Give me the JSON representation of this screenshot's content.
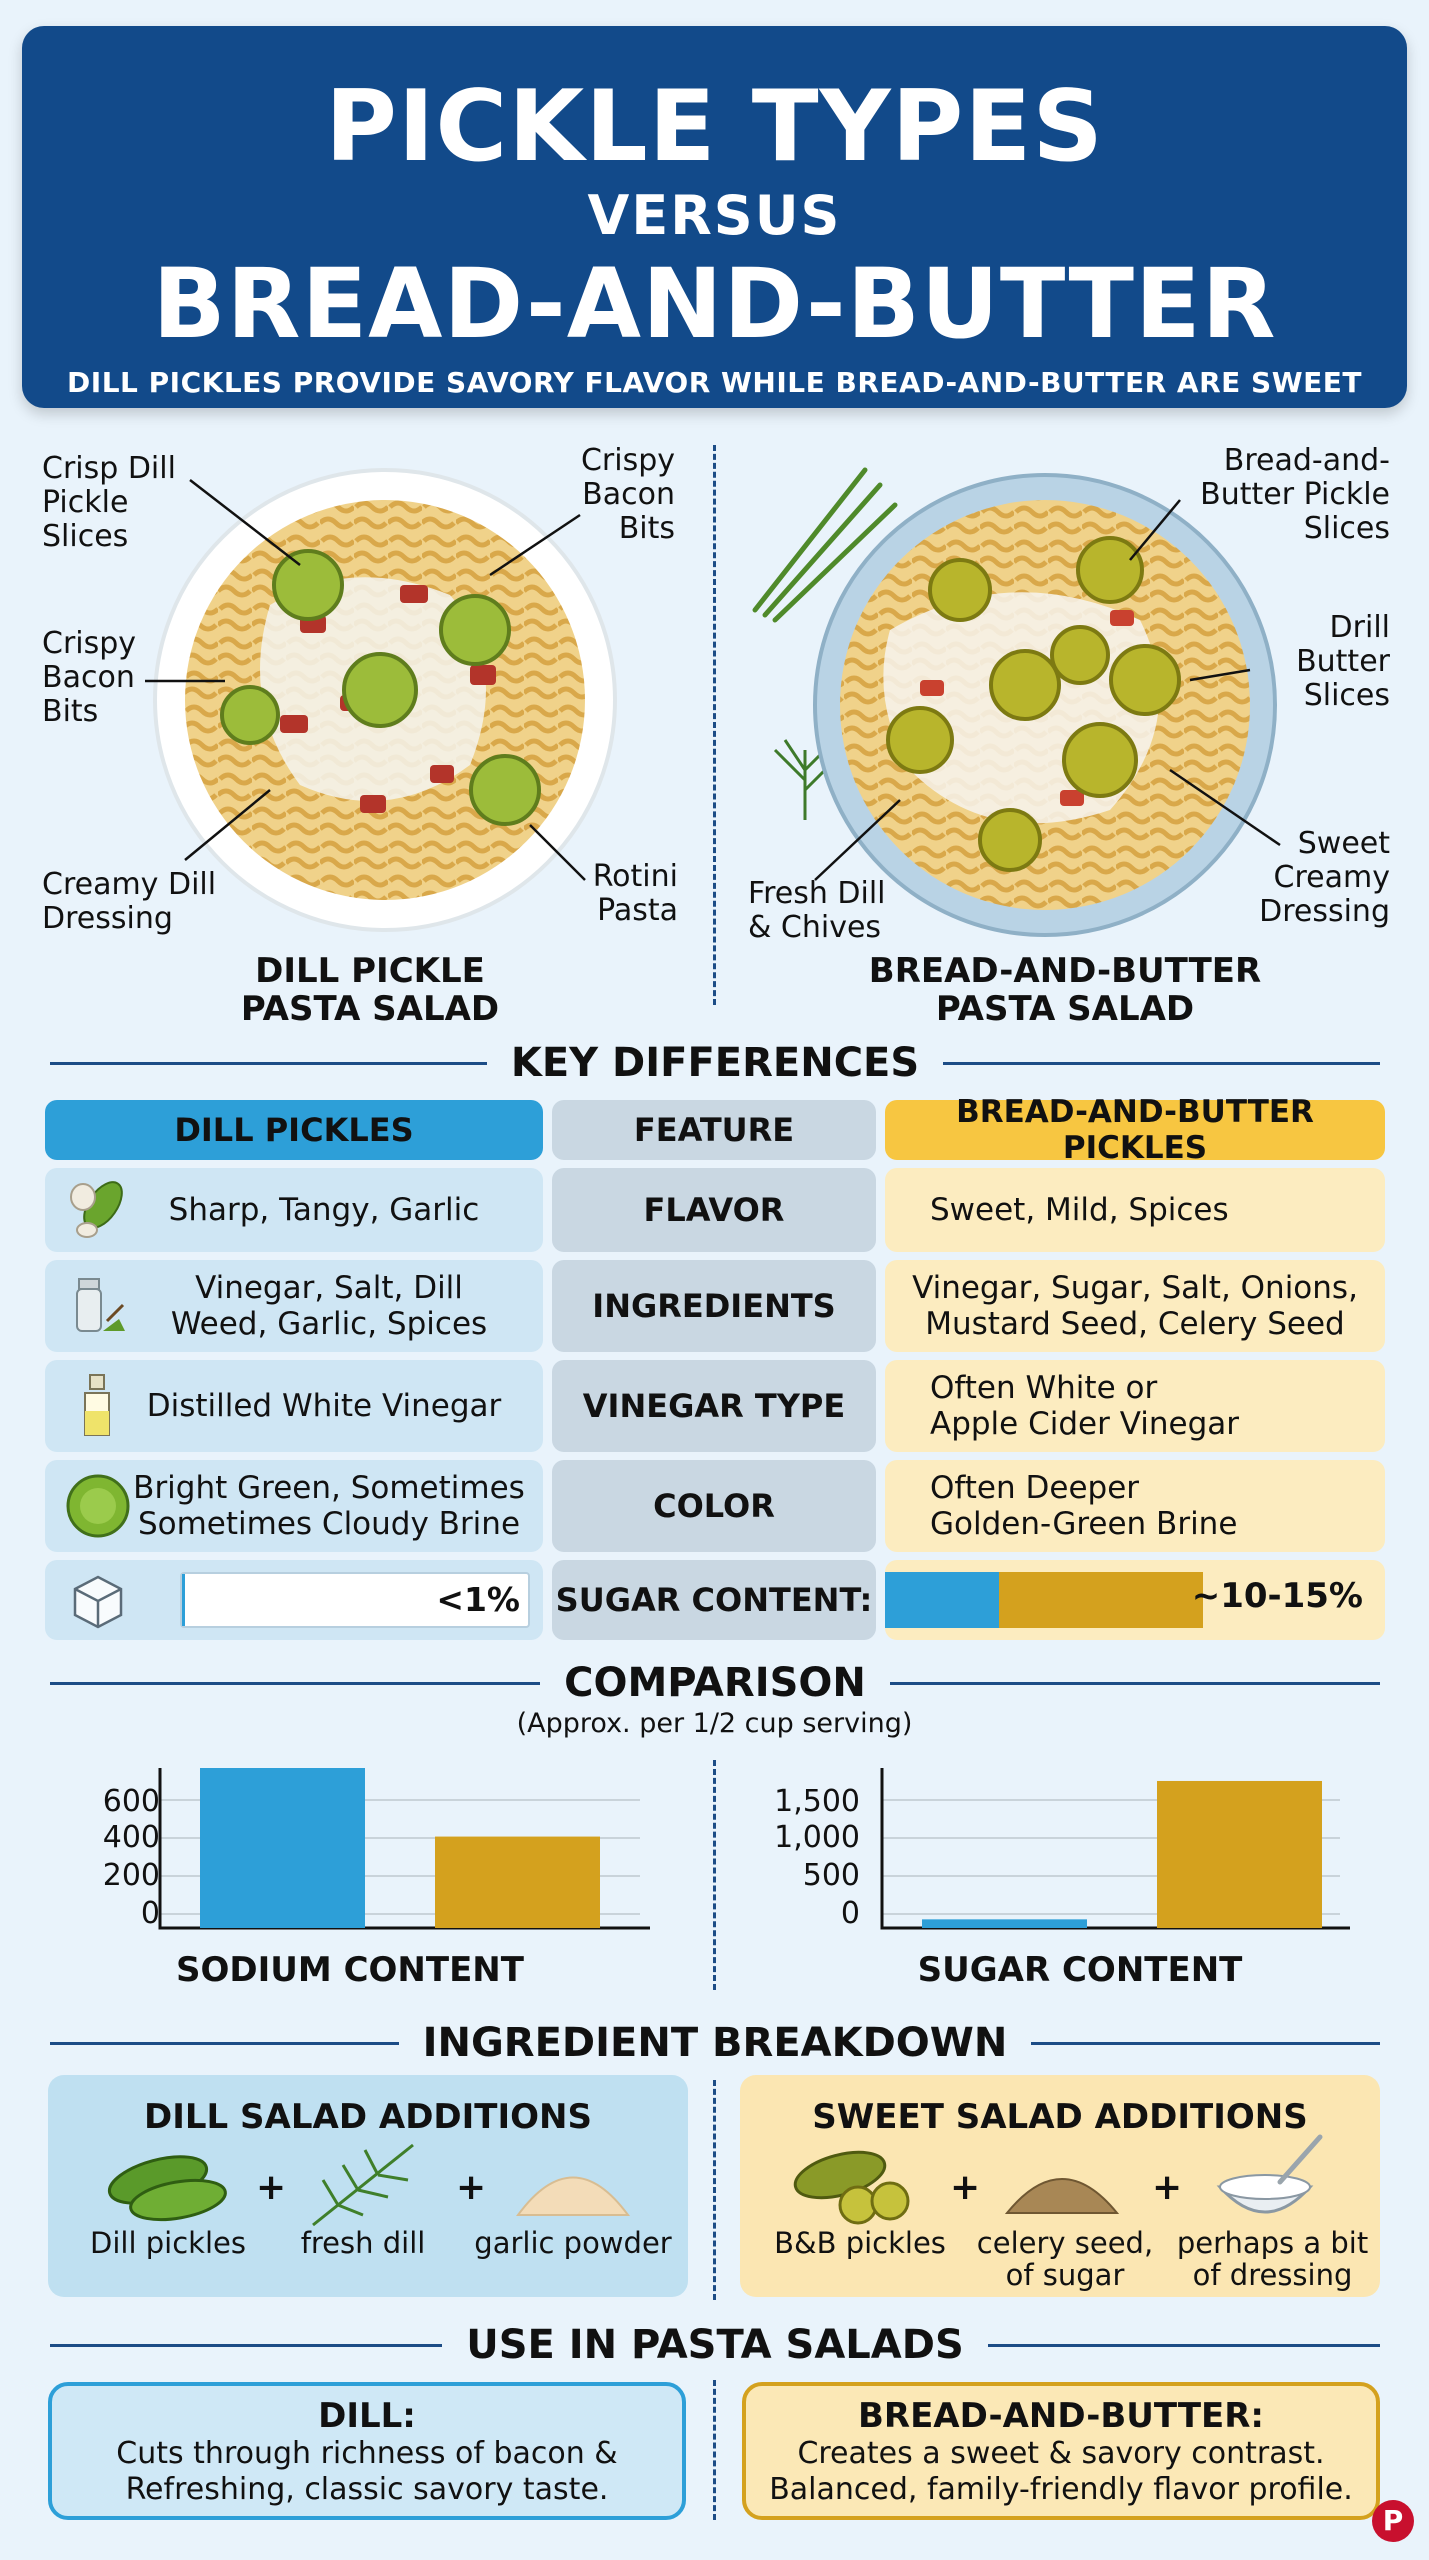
{
  "header": {
    "line1": "PICKLE TYPES",
    "line2": "VERSUS",
    "line3": "BREAD-AND-BUTTER",
    "subtitle": "DILL PICKLES PROVIDE SAVORY FLAVOR WHILE BREAD-AND-BUTTER ARE SWEET"
  },
  "dill_salad": {
    "title_line1": "DILL PICKLE",
    "title_line2": "PASTA SALAD",
    "callouts": {
      "pickle": "Crisp Dill\nPickle\nSlices",
      "bacon_top": "Crispy\nBacon\nBits",
      "bacon_left": "Crispy\nBacon\nBits",
      "dressing": "Creamy Dill\nDressing",
      "pasta": "Rotini\nPasta"
    }
  },
  "bb_salad": {
    "title_line1": "BREAD-AND-BUTTER",
    "title_line2": "PASTA SALAD",
    "callouts": {
      "pickle": "Bread-and-\nButter Pickle\nSlices",
      "drill": "Drill\nButter\nSlices",
      "dressing": "Sweet\nCreamy\nDressing",
      "herbs": "Fresh Dill\n& Chives"
    }
  },
  "key_differences": {
    "title": "KEY DIFFERENCES",
    "headers": [
      "DILL PICKLES",
      "FEATURE",
      "BREAD-AND-BUTTER PICKLES"
    ],
    "rows": [
      {
        "icon": "pickle-garlic-icon",
        "dill": "Sharp, Tangy, Garlic",
        "feature": "FLAVOR",
        "bb": "Sweet, Mild, Spices"
      },
      {
        "icon": "spice-jar-icon",
        "dill": "Vinegar, Salt, Dill\nWeed, Garlic, Spices",
        "feature": "INGREDIENTS",
        "bb": "Vinegar, Sugar, Salt, Onions,\nMustard Seed, Celery Seed"
      },
      {
        "icon": "vinegar-bottle-icon",
        "dill": "Distilled White Vinegar",
        "feature": "VINEGAR TYPE",
        "bb": "Often White or\nApple Cider Vinegar"
      },
      {
        "icon": "pickle-slice-icon",
        "dill": "Bright Green, Sometimes\nSometimes Cloudy Brine",
        "feature": "COLOR",
        "bb": "Often Deeper\nGolden-Green Brine"
      }
    ],
    "sugar_row": {
      "icon": "sugar-cube-icon",
      "feature": "SUGAR CONTENT:",
      "dill_value": "<1%",
      "bb_value": "~10-15%",
      "dill_fill": 0.01,
      "bb_fill_blue": 0.36,
      "bb_fill_gold": 0.64
    }
  },
  "comparison": {
    "title": "COMPARISON",
    "subtitle": "(Approx. per 1/2 cup serving)"
  },
  "chart_data": [
    {
      "type": "bar",
      "xlabel": "SODIUM CONTENT",
      "ticks": [
        "600",
        "400",
        "200",
        "0"
      ],
      "ylim": [
        0,
        700
      ],
      "values": [
        700,
        400
      ],
      "colors": [
        "#2d9fd8",
        "#d4a11e"
      ]
    },
    {
      "type": "bar",
      "xlabel": "SUGAR CONTENT",
      "ticks": [
        "1,500",
        "1,000",
        "500",
        "0"
      ],
      "ylim": [
        0,
        1850
      ],
      "values": [
        100,
        1700
      ],
      "colors": [
        "#2d9fd8",
        "#d4a11e"
      ]
    }
  ],
  "ingredients": {
    "title": "INGREDIENT BREAKDOWN",
    "dill": {
      "title": "DILL SALAD ADDITIONS",
      "items": [
        "Dill pickles",
        "fresh dill",
        "garlic powder"
      ]
    },
    "bb": {
      "title": "SWEET SALAD ADDITIONS",
      "items": [
        "B&B pickles",
        "celery seed,\nof sugar",
        "perhaps a bit\nof dressing"
      ]
    },
    "plus": "+"
  },
  "use": {
    "title": "USE IN PASTA SALADS",
    "dill": {
      "title": "DILL:",
      "text": "Cuts through richness of bacon &\nRefreshing, classic savory taste."
    },
    "bb": {
      "title": "BREAD-AND-BUTTER:",
      "text": "Creates a sweet & savory contrast.\nBalanced, family-friendly flavor profile."
    }
  },
  "colors": {
    "navy": "#124a8a",
    "blue": "#2d9fd8",
    "gold": "#d4a11e",
    "yellow": "#f7c641"
  }
}
